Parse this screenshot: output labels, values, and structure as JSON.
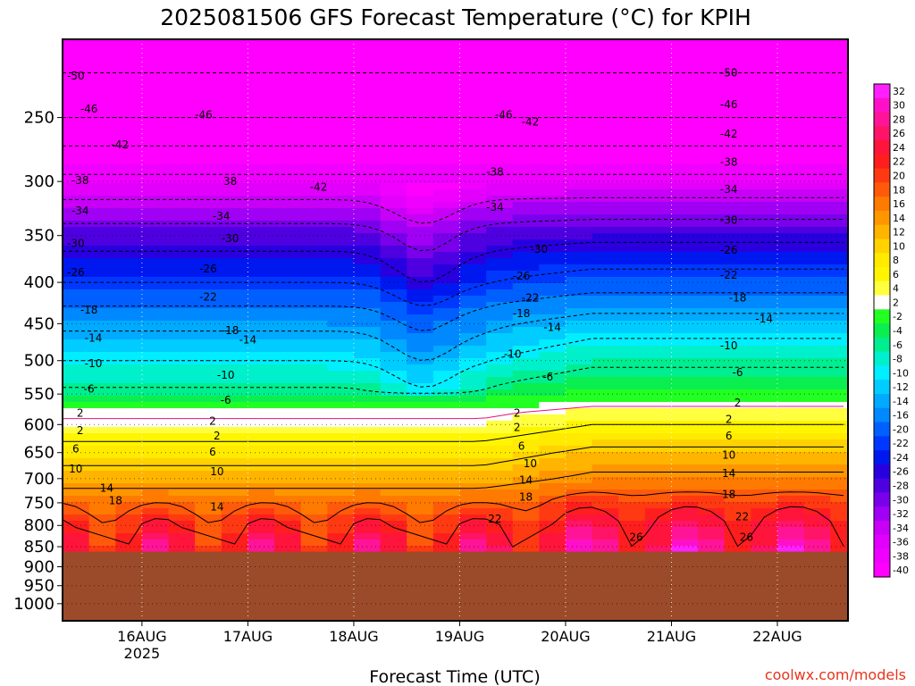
{
  "chart_data": {
    "type": "heatmap",
    "title": "2025081506 GFS Forecast Temperature (°C) for KPIH",
    "xlabel": "Forecast Time (UTC)",
    "ylabel": "",
    "credit": "coolwx.com/models",
    "x_ticks": [
      {
        "label": "16AUG",
        "sub": "2025",
        "hours": 18
      },
      {
        "label": "17AUG",
        "sub": "",
        "hours": 42
      },
      {
        "label": "18AUG",
        "sub": "",
        "hours": 66
      },
      {
        "label": "19AUG",
        "sub": "",
        "hours": 90
      },
      {
        "label": "20AUG",
        "sub": "",
        "hours": 114
      },
      {
        "label": "21AUG",
        "sub": "",
        "hours": 138
      },
      {
        "label": "22AUG",
        "sub": "",
        "hours": 162
      }
    ],
    "x_range_hours": [
      0,
      178
    ],
    "y_ticks": [
      250,
      300,
      350,
      400,
      450,
      500,
      550,
      600,
      650,
      700,
      750,
      800,
      850,
      900,
      950,
      1000
    ],
    "y_range_hPa": [
      200,
      1050
    ],
    "y_scale": "log",
    "y_reversed": true,
    "grid": true,
    "surface_pressure_hPa": 862,
    "colorbar": {
      "labels": [
        "32",
        "30",
        "28",
        "26",
        "24",
        "22",
        "20",
        "18",
        "16",
        "14",
        "12",
        "10",
        "8",
        "6",
        "4",
        "2",
        "-2",
        "-4",
        "-6",
        "-8",
        "-10",
        "-12",
        "-14",
        "-16",
        "-20",
        "-22",
        "-24",
        "-26",
        "-28",
        "-30",
        "-32",
        "-34",
        "-36",
        "-38",
        "-40"
      ],
      "colors": [
        "#ff20ff",
        "#ff10c8",
        "#ff1498",
        "#ff1468",
        "#ff143c",
        "#ff1e1e",
        "#ff3a12",
        "#ff5a0a",
        "#ff7a00",
        "#ff9600",
        "#ffb400",
        "#ffd200",
        "#ffea00",
        "#fff500",
        "#ffff40",
        "#ffffff",
        "#22ff22",
        "#0aee50",
        "#00ee90",
        "#00f0cc",
        "#00eeff",
        "#00ccff",
        "#00aaff",
        "#0088ff",
        "#0060ff",
        "#0038ff",
        "#0018f0",
        "#2800e0",
        "#4e00e0",
        "#7a00ec",
        "#a000f4",
        "#c800f8",
        "#e200fc",
        "#f000ff",
        "#ff00ff"
      ]
    },
    "profile_keys": [
      {
        "p": 862,
        "t": 24
      },
      {
        "p": 800,
        "t": 21
      },
      {
        "p": 750,
        "t": 17
      },
      {
        "p": 700,
        "t": 12
      },
      {
        "p": 650,
        "t": 8
      },
      {
        "p": 600,
        "t": 3
      },
      {
        "p": 580,
        "t": 1
      },
      {
        "p": 550,
        "t": -5
      },
      {
        "p": 500,
        "t": -10
      },
      {
        "p": 450,
        "t": -15
      },
      {
        "p": 400,
        "t": -22
      },
      {
        "p": 350,
        "t": -28
      },
      {
        "p": 300,
        "t": -37
      },
      {
        "p": 250,
        "t": -46
      },
      {
        "p": 200,
        "t": -53
      }
    ],
    "contour_labels": [
      {
        "text": "-50",
        "hours": 3,
        "p": 222
      },
      {
        "text": "-46",
        "hours": 6,
        "p": 244
      },
      {
        "text": "-42",
        "hours": 13,
        "p": 270
      },
      {
        "text": "-38",
        "hours": 4,
        "p": 299
      },
      {
        "text": "-34",
        "hours": 4,
        "p": 326
      },
      {
        "text": "-30",
        "hours": 3,
        "p": 358
      },
      {
        "text": "-26",
        "hours": 3,
        "p": 389
      },
      {
        "text": "-18",
        "hours": 6,
        "p": 433
      },
      {
        "text": "-14",
        "hours": 7,
        "p": 469
      },
      {
        "text": "-10",
        "hours": 7,
        "p": 504
      },
      {
        "text": "-6",
        "hours": 6,
        "p": 542
      },
      {
        "text": "2",
        "hours": 4,
        "p": 581
      },
      {
        "text": "2",
        "hours": 4,
        "p": 610
      },
      {
        "text": "6",
        "hours": 3,
        "p": 643
      },
      {
        "text": "10",
        "hours": 3,
        "p": 681
      },
      {
        "text": "14",
        "hours": 10,
        "p": 719
      },
      {
        "text": "18",
        "hours": 12,
        "p": 745
      },
      {
        "text": "-46",
        "hours": 32,
        "p": 248
      },
      {
        "text": "-42",
        "hours": 58,
        "p": 305
      },
      {
        "text": "-34",
        "hours": 36,
        "p": 331
      },
      {
        "text": "-30",
        "hours": 38,
        "p": 353
      },
      {
        "text": "-26",
        "hours": 33,
        "p": 385
      },
      {
        "text": "-22",
        "hours": 33,
        "p": 417
      },
      {
        "text": "-18",
        "hours": 38,
        "p": 459
      },
      {
        "text": "-14",
        "hours": 42,
        "p": 471
      },
      {
        "text": "-10",
        "hours": 37,
        "p": 521
      },
      {
        "text": "-6",
        "hours": 37,
        "p": 560
      },
      {
        "text": "2",
        "hours": 34,
        "p": 594
      },
      {
        "text": "2",
        "hours": 35,
        "p": 620
      },
      {
        "text": "6",
        "hours": 34,
        "p": 649
      },
      {
        "text": "10",
        "hours": 35,
        "p": 686
      },
      {
        "text": "14",
        "hours": 35,
        "p": 759
      },
      {
        "text": "38",
        "hours": 38,
        "p": 300
      },
      {
        "text": "-46",
        "hours": 100,
        "p": 248
      },
      {
        "text": "-42",
        "hours": 106,
        "p": 253
      },
      {
        "text": "-38",
        "hours": 98,
        "p": 292
      },
      {
        "text": "-34",
        "hours": 98,
        "p": 323
      },
      {
        "text": "-30",
        "hours": 108,
        "p": 364
      },
      {
        "text": "-26",
        "hours": 104,
        "p": 393
      },
      {
        "text": "-22",
        "hours": 106,
        "p": 418
      },
      {
        "text": "-18",
        "hours": 104,
        "p": 437
      },
      {
        "text": "-14",
        "hours": 111,
        "p": 455
      },
      {
        "text": "-10",
        "hours": 102,
        "p": 491
      },
      {
        "text": "-6",
        "hours": 110,
        "p": 524
      },
      {
        "text": "2",
        "hours": 103,
        "p": 581
      },
      {
        "text": "2",
        "hours": 103,
        "p": 605
      },
      {
        "text": "6",
        "hours": 104,
        "p": 638
      },
      {
        "text": "10",
        "hours": 106,
        "p": 671
      },
      {
        "text": "14",
        "hours": 105,
        "p": 703
      },
      {
        "text": "18",
        "hours": 105,
        "p": 738
      },
      {
        "text": "22",
        "hours": 98,
        "p": 785
      },
      {
        "text": "-50",
        "hours": 151,
        "p": 220
      },
      {
        "text": "-46",
        "hours": 151,
        "p": 241
      },
      {
        "text": "-42",
        "hours": 151,
        "p": 262
      },
      {
        "text": "-38",
        "hours": 151,
        "p": 284
      },
      {
        "text": "-34",
        "hours": 151,
        "p": 307
      },
      {
        "text": "-30",
        "hours": 151,
        "p": 335
      },
      {
        "text": "-26",
        "hours": 151,
        "p": 365
      },
      {
        "text": "-22",
        "hours": 151,
        "p": 392
      },
      {
        "text": "-18",
        "hours": 153,
        "p": 418
      },
      {
        "text": "-14",
        "hours": 159,
        "p": 444
      },
      {
        "text": "-10",
        "hours": 151,
        "p": 479
      },
      {
        "text": "-6",
        "hours": 153,
        "p": 517
      },
      {
        "text": "2",
        "hours": 153,
        "p": 564
      },
      {
        "text": "2",
        "hours": 151,
        "p": 591
      },
      {
        "text": "6",
        "hours": 151,
        "p": 620
      },
      {
        "text": "10",
        "hours": 151,
        "p": 655
      },
      {
        "text": "14",
        "hours": 151,
        "p": 690
      },
      {
        "text": "18",
        "hours": 151,
        "p": 732
      },
      {
        "text": "22",
        "hours": 154,
        "p": 780
      },
      {
        "text": "26",
        "hours": 155,
        "p": 828
      },
      {
        "text": "26",
        "hours": 130,
        "p": 828
      }
    ]
  }
}
